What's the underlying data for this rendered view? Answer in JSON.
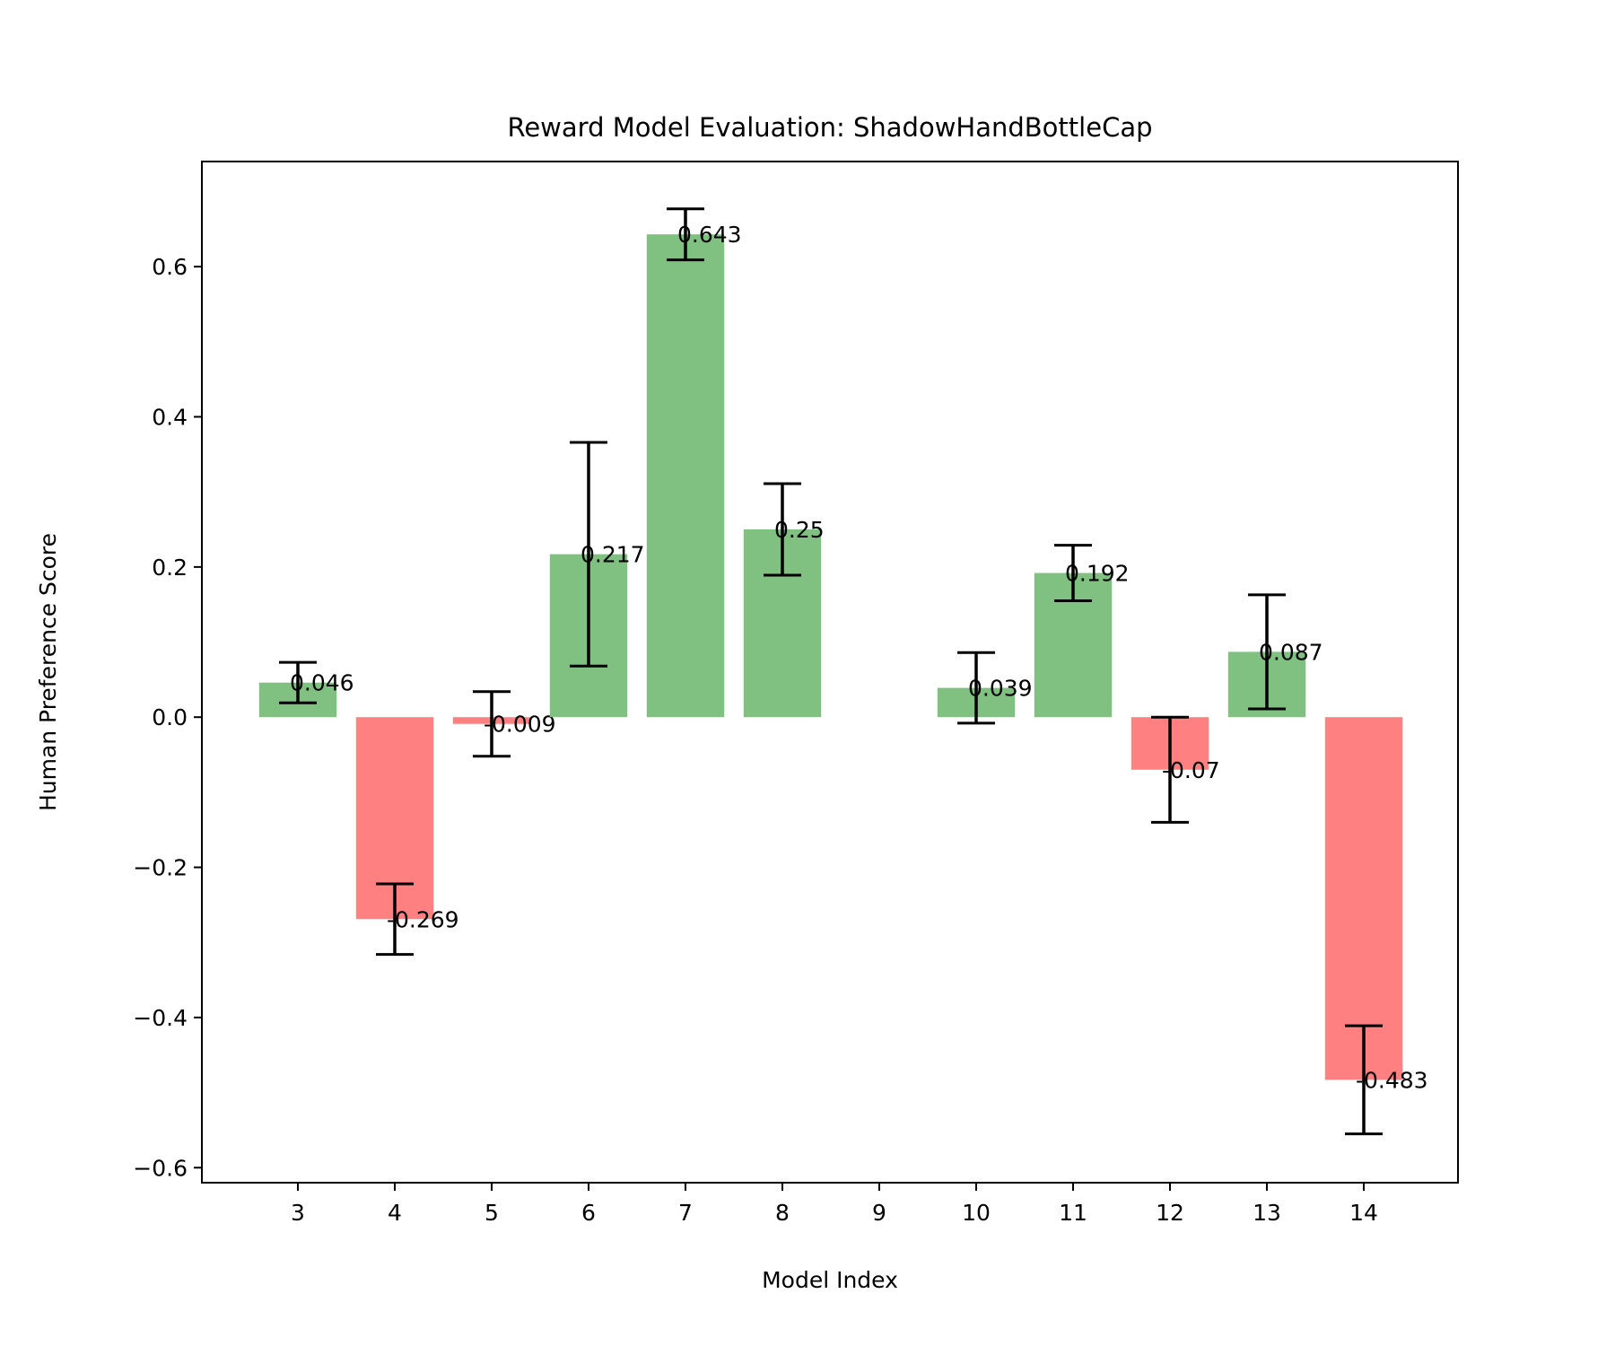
{
  "chart_data": {
    "type": "bar",
    "title": "Reward Model Evaluation: ShadowHandBottleCap",
    "xlabel": "Model Index",
    "ylabel": "Human Preference Score",
    "ylim": [
      -0.62,
      0.74
    ],
    "yticks": [
      -0.6,
      -0.4,
      -0.2,
      0.0,
      0.2,
      0.4,
      0.6
    ],
    "ytick_labels": [
      "−0.6",
      "−0.4",
      "−0.2",
      "0.0",
      "0.2",
      "0.4",
      "0.6"
    ],
    "grid": false,
    "categories": [
      "3",
      "4",
      "5",
      "6",
      "7",
      "8",
      "9",
      "10",
      "11",
      "12",
      "13",
      "14"
    ],
    "values": [
      0.046,
      -0.269,
      -0.009,
      0.217,
      0.643,
      0.25,
      null,
      0.039,
      0.192,
      -0.07,
      0.087,
      -0.483
    ],
    "errors": [
      0.027,
      0.047,
      0.043,
      0.149,
      0.034,
      0.061,
      null,
      0.047,
      0.037,
      0.07,
      0.076,
      0.072
    ],
    "value_labels": [
      "0.046",
      "-0.269",
      "-0.009",
      "0.217",
      "0.643",
      "0.25",
      "",
      "0.039",
      "0.192",
      "-0.07",
      "0.087",
      "-0.483"
    ],
    "colors": {
      "positive": "#80c080",
      "negative": "#ff8080",
      "error_bar": "#000000"
    }
  }
}
